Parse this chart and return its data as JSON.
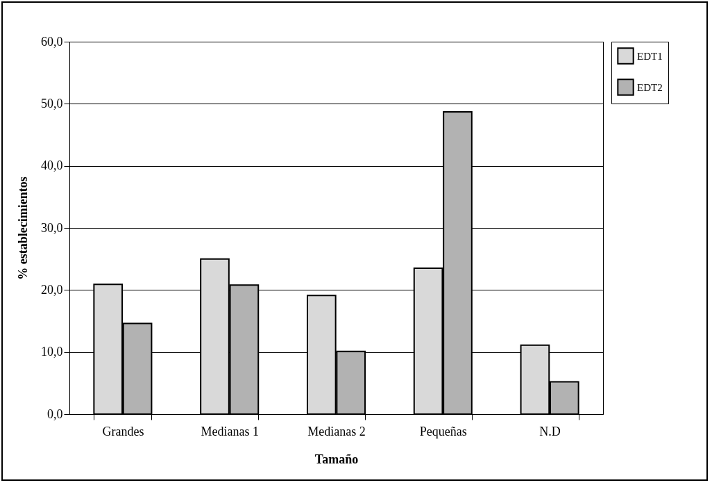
{
  "chart_data": {
    "type": "bar",
    "xlabel": "Tamaño",
    "ylabel": "% establecimientos",
    "categories": [
      "Grandes",
      "Medianas 1",
      "Medianas 2",
      "Pequeñas",
      "N.D"
    ],
    "series": [
      {
        "name": "EDT1",
        "color": "#d9d9d9",
        "values": [
          20.9,
          25.0,
          19.1,
          23.5,
          11.1
        ]
      },
      {
        "name": "EDT2",
        "color": "#b2b2b2",
        "values": [
          14.6,
          20.8,
          10.1,
          48.7,
          5.2
        ]
      }
    ],
    "ylim": [
      0,
      60
    ],
    "yticks": [
      {
        "value": 0,
        "label": "0,0"
      },
      {
        "value": 10,
        "label": "10,0"
      },
      {
        "value": 20,
        "label": "20,0"
      },
      {
        "value": 30,
        "label": "30,0"
      },
      {
        "value": 40,
        "label": "40,0"
      },
      {
        "value": 50,
        "label": "50,0"
      },
      {
        "value": 60,
        "label": "60,0"
      }
    ],
    "grid": "y",
    "legend": "right"
  }
}
